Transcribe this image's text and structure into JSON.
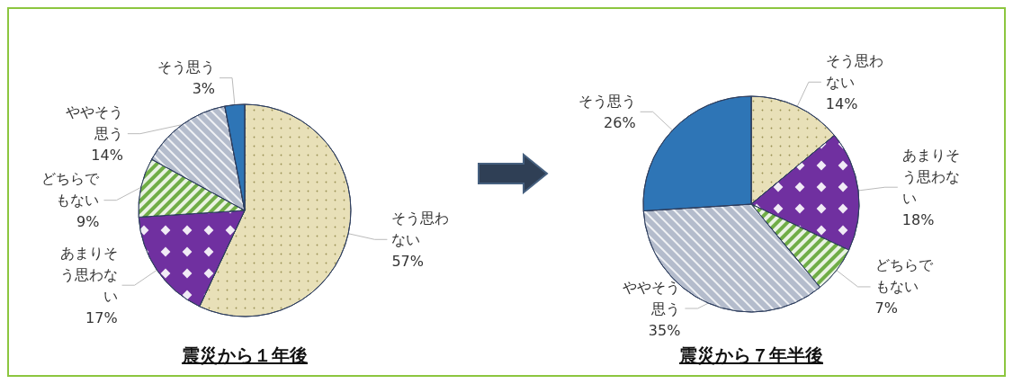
{
  "chart_data": [
    {
      "type": "pie",
      "title": "震災から１年後",
      "categories": [
        "そう思わない",
        "あまりそう思わない",
        "どちらでもない",
        "ややそう思う",
        "そう思う"
      ],
      "values": [
        57,
        17,
        9,
        14,
        3
      ],
      "value_labels": [
        "57%",
        "17%",
        "9%",
        "14%",
        "3%"
      ],
      "colors": [
        "#e8e0b8",
        "#7030a0",
        "#70ad47",
        "#b4bccc",
        "#2e75b6"
      ]
    },
    {
      "type": "pie",
      "title": "震災から７年半後",
      "categories": [
        "そう思わない",
        "あまりそう思わない",
        "どちらでもない",
        "ややそう思う",
        "そう思う"
      ],
      "values": [
        14,
        18,
        7,
        35,
        26
      ],
      "value_labels": [
        "14%",
        "18%",
        "7%",
        "35%",
        "26%"
      ],
      "colors": [
        "#e8e0b8",
        "#7030a0",
        "#70ad47",
        "#b4bccc",
        "#2e75b6"
      ]
    }
  ]
}
